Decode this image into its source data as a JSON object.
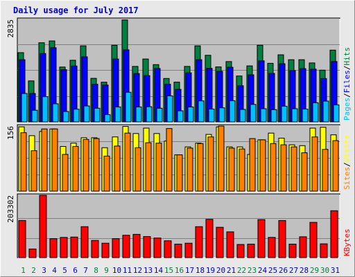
{
  "title": "Daily usage for July 2017",
  "colors": {
    "background": "#e8e8e8",
    "plot_bg": "#c0c0c0",
    "hits": "#008040",
    "files": "#0000ff",
    "pages": "#00c0ff",
    "visits": "#ffff00",
    "sites": "#ff8000",
    "kbytes": "#ff0000",
    "title": "#0000cc",
    "tick_weekend": "#008040",
    "tick_weekday": "#0000cc"
  },
  "chart_data": [
    {
      "type": "bar",
      "panel": "top",
      "max_label": "2835",
      "legend": [
        {
          "name": "Pages",
          "color": "#00c0ff"
        },
        {
          "name": "Files",
          "color": "#0000ff"
        },
        {
          "name": "Hits",
          "color": "#008040"
        }
      ],
      "ylim": [
        0,
        2835
      ],
      "categories": [
        "1",
        "2",
        "3",
        "4",
        "5",
        "6",
        "7",
        "8",
        "9",
        "10",
        "11",
        "12",
        "13",
        "14",
        "15",
        "16",
        "17",
        "18",
        "19",
        "20",
        "21",
        "22",
        "23",
        "24",
        "25",
        "26",
        "27",
        "28",
        "29",
        "30",
        "31"
      ],
      "series": [
        {
          "name": "Hits",
          "values": [
            1916,
            1134,
            2189,
            2240,
            1518,
            1705,
            2104,
            1204,
            1097,
            2121,
            2820,
            1535,
            1740,
            1585,
            1202,
            1100,
            1535,
            2104,
            1842,
            1520,
            1669,
            1270,
            1550,
            2121,
            1620,
            1857,
            1721,
            1720,
            1630,
            1430,
            1984
          ]
        },
        {
          "name": "Files",
          "values": [
            1720,
            786,
            1890,
            2052,
            1444,
            1546,
            1800,
            1042,
            1020,
            1740,
            1992,
            1338,
            1280,
            1477,
            1042,
            900,
            1357,
            1720,
            1480,
            1400,
            1512,
            1000,
            1302,
            1690,
            1340,
            1610,
            1420,
            1474,
            1460,
            1200,
            1670
          ]
        },
        {
          "name": "Pages",
          "values": [
            786,
            322,
            698,
            500,
            288,
            350,
            440,
            378,
            202,
            413,
            820,
            413,
            419,
            378,
            721,
            307,
            413,
            580,
            355,
            389,
            587,
            345,
            482,
            364,
            340,
            432,
            364,
            355,
            530,
            575,
            472
          ]
        }
      ]
    },
    {
      "type": "bar",
      "panel": "middle",
      "max_label": "156",
      "legend": [
        {
          "name": "Sites",
          "color": "#ff8000"
        },
        {
          "name": "Visits",
          "color": "#ffff00"
        }
      ],
      "ylim": [
        0,
        156
      ],
      "categories": [
        "1",
        "2",
        "3",
        "4",
        "5",
        "6",
        "7",
        "8",
        "9",
        "10",
        "11",
        "12",
        "13",
        "14",
        "15",
        "16",
        "17",
        "18",
        "19",
        "20",
        "21",
        "22",
        "23",
        "24",
        "25",
        "26",
        "27",
        "28",
        "29",
        "30",
        "31"
      ],
      "series": [
        {
          "name": "Visits",
          "values": [
            154,
            133,
            143,
            149,
            107,
            115,
            128,
            128,
            104,
            130,
            155,
            138,
            151,
            138,
            120,
            87,
            106,
            115,
            136,
            154,
            106,
            106,
            88,
            123,
            139,
            127,
            111,
            109,
            151,
            153,
            135
          ]
        },
        {
          "name": "Sites",
          "values": [
            140,
            97,
            149,
            149,
            88,
            107,
            124,
            126,
            84,
            108,
            139,
            104,
            116,
            115,
            150,
            87,
            103,
            114,
            130,
            156,
            103,
            101,
            126,
            123,
            114,
            111,
            106,
            92,
            130,
            100,
            121
          ]
        }
      ]
    },
    {
      "type": "bar",
      "panel": "bottom",
      "max_label": "203302",
      "legend": [
        {
          "name": "KBytes",
          "color": "#ff0000"
        }
      ],
      "ylim": [
        0,
        203302
      ],
      "categories": [
        "1",
        "2",
        "3",
        "4",
        "5",
        "6",
        "7",
        "8",
        "9",
        "10",
        "11",
        "12",
        "13",
        "14",
        "15",
        "16",
        "17",
        "18",
        "19",
        "20",
        "21",
        "22",
        "23",
        "24",
        "25",
        "26",
        "27",
        "28",
        "29",
        "30",
        "31"
      ],
      "series": [
        {
          "name": "KBytes",
          "values": [
            121000,
            28000,
            203302,
            62000,
            66000,
            67000,
            101000,
            56000,
            47000,
            62000,
            73000,
            76000,
            69000,
            64000,
            55000,
            44000,
            47000,
            101000,
            125000,
            99000,
            84000,
            43000,
            44000,
            124000,
            66000,
            121000,
            44000,
            68000,
            115000,
            45000,
            153000
          ]
        }
      ]
    }
  ]
}
